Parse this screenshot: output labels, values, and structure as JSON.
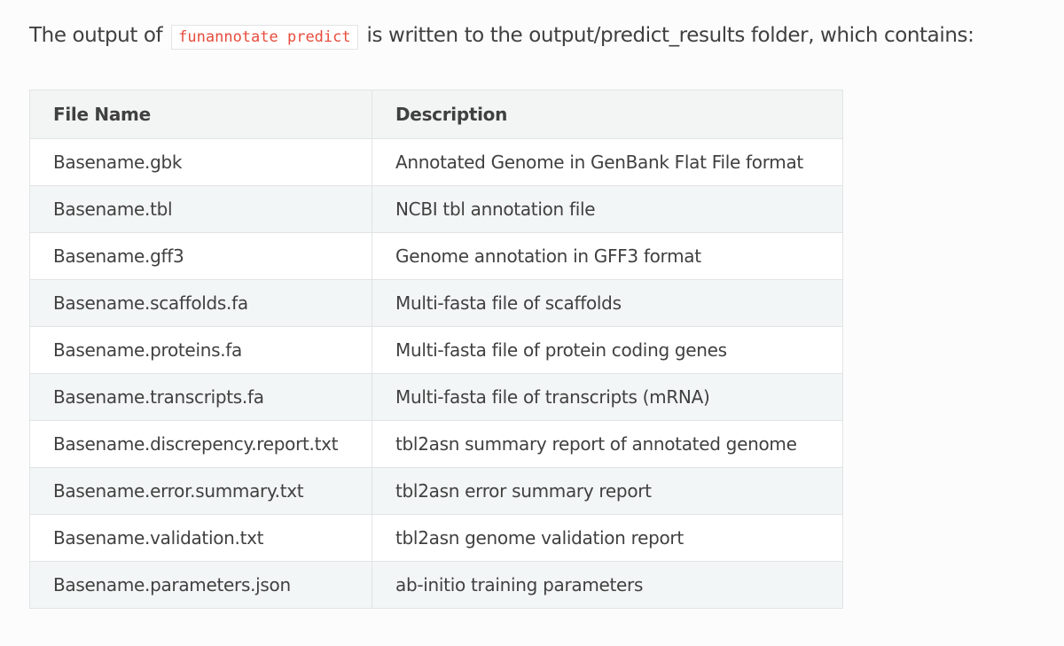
{
  "intro": {
    "before": "The output of",
    "code": "funannotate predict",
    "after": "is written to the output/predict_results folder, which contains:"
  },
  "table": {
    "headers": [
      "File Name",
      "Description"
    ],
    "rows": [
      [
        "Basename.gbk",
        "Annotated Genome in GenBank Flat File format"
      ],
      [
        "Basename.tbl",
        "NCBI tbl annotation file"
      ],
      [
        "Basename.gff3",
        "Genome annotation in GFF3 format"
      ],
      [
        "Basename.scaffolds.fa",
        "Multi-fasta file of scaffolds"
      ],
      [
        "Basename.proteins.fa",
        "Multi-fasta file of protein coding genes"
      ],
      [
        "Basename.transcripts.fa",
        "Multi-fasta file of transcripts (mRNA)"
      ],
      [
        "Basename.discrepency.report.txt",
        "tbl2asn summary report of annotated genome"
      ],
      [
        "Basename.error.summary.txt",
        "tbl2asn error summary report"
      ],
      [
        "Basename.validation.txt",
        "tbl2asn genome validation report"
      ],
      [
        "Basename.parameters.json",
        "ab-initio training parameters"
      ]
    ]
  }
}
